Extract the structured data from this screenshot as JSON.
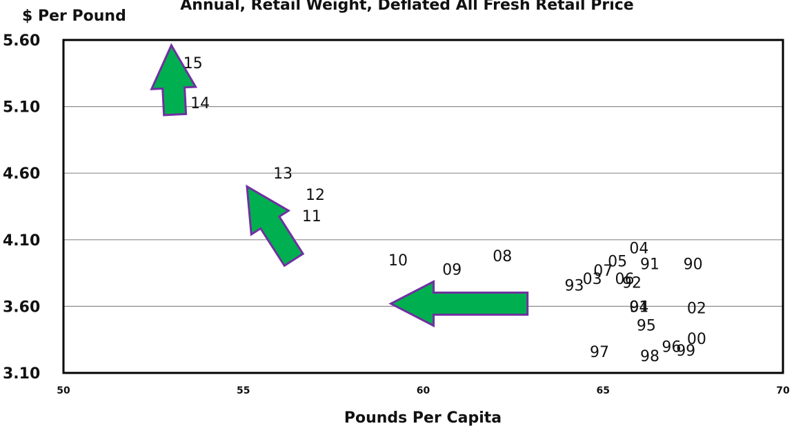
{
  "chart_data": {
    "type": "scatter",
    "title": "Annual, Retail Weight, Deflated All Fresh Retail Price",
    "xlabel": "Pounds Per Capita",
    "ylabel": "$ Per Pound",
    "xlim": [
      50,
      70
    ],
    "ylim": [
      3.1,
      5.6
    ],
    "x_ticks": [
      "50",
      "55",
      "60",
      "65",
      "70"
    ],
    "y_ticks": [
      "3.10",
      "3.60",
      "4.10",
      "4.60",
      "5.10",
      "5.60"
    ],
    "grid": "horizontal",
    "legend": "none",
    "points": [
      {
        "label": "15",
        "x": 53.6,
        "y": 5.43
      },
      {
        "label": "14",
        "x": 53.8,
        "y": 5.13
      },
      {
        "label": "13",
        "x": 56.1,
        "y": 4.6
      },
      {
        "label": "12",
        "x": 57.0,
        "y": 4.44
      },
      {
        "label": "11",
        "x": 56.9,
        "y": 4.28
      },
      {
        "label": "10",
        "x": 59.3,
        "y": 3.95
      },
      {
        "label": "09",
        "x": 60.8,
        "y": 3.88
      },
      {
        "label": "08",
        "x": 62.2,
        "y": 3.98
      },
      {
        "label": "04",
        "x": 66.0,
        "y": 4.04
      },
      {
        "label": "05",
        "x": 65.4,
        "y": 3.94
      },
      {
        "label": "91",
        "x": 66.3,
        "y": 3.92
      },
      {
        "label": "90",
        "x": 67.5,
        "y": 3.92
      },
      {
        "label": "07",
        "x": 65.0,
        "y": 3.87
      },
      {
        "label": "03",
        "x": 64.7,
        "y": 3.81
      },
      {
        "label": "06",
        "x": 65.6,
        "y": 3.81
      },
      {
        "label": "92",
        "x": 65.8,
        "y": 3.78
      },
      {
        "label": "93",
        "x": 64.2,
        "y": 3.76
      },
      {
        "label": "94",
        "x": 66.0,
        "y": 3.6
      },
      {
        "label": "01",
        "x": 66.0,
        "y": 3.6
      },
      {
        "label": "02",
        "x": 67.6,
        "y": 3.59
      },
      {
        "label": "95",
        "x": 66.2,
        "y": 3.46
      },
      {
        "label": "00",
        "x": 67.6,
        "y": 3.36
      },
      {
        "label": "96",
        "x": 66.9,
        "y": 3.3
      },
      {
        "label": "99",
        "x": 67.3,
        "y": 3.27
      },
      {
        "label": "97",
        "x": 64.9,
        "y": 3.26
      },
      {
        "label": "98",
        "x": 66.3,
        "y": 3.23
      }
    ],
    "arrows": [
      {
        "from": [
          62.9,
          3.62
        ],
        "to": [
          59.1,
          3.62
        ]
      },
      {
        "from": [
          56.4,
          3.95
        ],
        "to": [
          55.1,
          4.5
        ]
      },
      {
        "from": [
          53.1,
          5.04
        ],
        "to": [
          53.0,
          5.56
        ]
      }
    ]
  },
  "colors": {
    "arrow_fill": "#00b050",
    "arrow_stroke": "#7030a0",
    "grid": "#8c8c8c",
    "axis": "#000000"
  }
}
